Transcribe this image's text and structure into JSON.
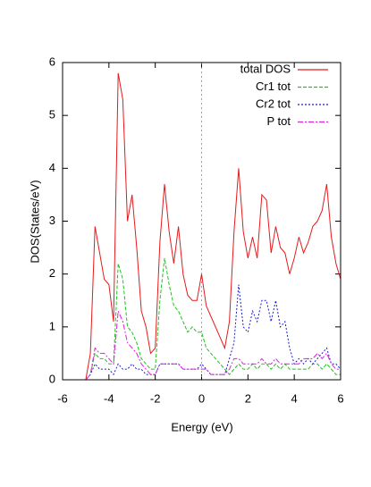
{
  "chart_data": {
    "type": "line",
    "x_label": "Energy (eV)",
    "y_label": "DOS(States/eV)",
    "x": [
      -6,
      -5.8,
      -5.6,
      -5.4,
      -5.2,
      -5,
      -4.8,
      -4.6,
      -4.4,
      -4.2,
      -4,
      -3.8,
      -3.6,
      -3.4,
      -3.2,
      -3,
      -2.8,
      -2.6,
      -2.4,
      -2.2,
      -2,
      -1.8,
      -1.6,
      -1.4,
      -1.2,
      -1,
      -0.8,
      -0.6,
      -0.4,
      -0.2,
      0,
      0.2,
      0.4,
      0.6,
      0.8,
      1,
      1.2,
      1.4,
      1.6,
      1.8,
      2,
      2.2,
      2.4,
      2.6,
      2.8,
      3,
      3.2,
      3.4,
      3.6,
      3.8,
      4,
      4.2,
      4.4,
      4.6,
      4.8,
      5,
      5.2,
      5.4,
      5.6,
      5.8,
      6
    ],
    "series": [
      {
        "name": "total DOS",
        "color": "#e41a1c",
        "dash": "none",
        "values": [
          0,
          0,
          0,
          0,
          0,
          0,
          0.5,
          2.9,
          2.4,
          1.9,
          1.8,
          1.1,
          5.8,
          5.3,
          3.0,
          3.5,
          2.5,
          1.3,
          1.0,
          0.5,
          0.6,
          2.6,
          3.7,
          2.8,
          2.2,
          2.9,
          2.0,
          1.6,
          1.5,
          1.5,
          2.0,
          1.4,
          1.2,
          1.0,
          0.8,
          0.6,
          1.1,
          2.8,
          4.0,
          2.8,
          2.3,
          2.7,
          2.3,
          3.5,
          3.4,
          2.4,
          2.9,
          2.5,
          2.4,
          2.0,
          2.3,
          2.7,
          2.4,
          2.6,
          2.9,
          3.0,
          3.2,
          3.7,
          2.7,
          2.2,
          1.9
        ]
      },
      {
        "name": "Cr1 tot",
        "color": "#22c022",
        "dash": "4,2",
        "values": [
          0,
          0,
          0,
          0,
          0,
          0,
          0.1,
          0.5,
          0.4,
          0.4,
          0.3,
          0.3,
          2.2,
          1.9,
          1.0,
          0.9,
          0.7,
          0.4,
          0.3,
          0.2,
          0.2,
          1.5,
          2.3,
          1.8,
          1.4,
          1.3,
          1.1,
          0.9,
          1.0,
          0.9,
          0.9,
          0.6,
          0.5,
          0.4,
          0.3,
          0.2,
          0.1,
          0.2,
          0.3,
          0.2,
          0.2,
          0.3,
          0.2,
          0.3,
          0.3,
          0.2,
          0.3,
          0.2,
          0.3,
          0.2,
          0.2,
          0.2,
          0.2,
          0.2,
          0.3,
          0.3,
          0.2,
          0.3,
          0.2,
          0.1,
          0.1
        ]
      },
      {
        "name": "Cr2 tot",
        "color": "#1a1ad0",
        "dash": "2,2",
        "values": [
          0,
          0,
          0,
          0,
          0,
          0,
          0.1,
          0.3,
          0.2,
          0.2,
          0.2,
          0.1,
          0.3,
          0.2,
          0.2,
          0.3,
          0.2,
          0.2,
          0.1,
          0.1,
          0.1,
          0.3,
          0.3,
          0.3,
          0.3,
          0.3,
          0.2,
          0.2,
          0.2,
          0.2,
          0.3,
          0.2,
          0.1,
          0.1,
          0.1,
          0.1,
          0.4,
          0.7,
          1.8,
          1.0,
          0.9,
          1.3,
          1.1,
          1.5,
          1.5,
          1.1,
          1.5,
          1.0,
          1.1,
          0.6,
          0.3,
          0.4,
          0.3,
          0.4,
          0.3,
          0.4,
          0.5,
          0.6,
          0.3,
          0.3,
          0.2
        ]
      },
      {
        "name": "P tot",
        "color": "#e020e0",
        "dash": "6,2,2,2",
        "values": [
          0,
          0,
          0,
          0,
          0,
          0,
          0.1,
          0.6,
          0.5,
          0.5,
          0.4,
          0.3,
          1.3,
          1.1,
          0.7,
          0.6,
          0.5,
          0.3,
          0.2,
          0.1,
          0.1,
          0.3,
          0.3,
          0.3,
          0.3,
          0.3,
          0.2,
          0.2,
          0.2,
          0.2,
          0.2,
          0.2,
          0.1,
          0.1,
          0.1,
          0.1,
          0.2,
          0.4,
          0.4,
          0.3,
          0.3,
          0.3,
          0.3,
          0.4,
          0.3,
          0.3,
          0.4,
          0.3,
          0.3,
          0.3,
          0.3,
          0.3,
          0.4,
          0.4,
          0.4,
          0.5,
          0.4,
          0.5,
          0.3,
          0.2,
          0.2
        ]
      }
    ],
    "xlim": [
      -6,
      6
    ],
    "xticks": [
      -6,
      -4,
      -2,
      0,
      2,
      4,
      6
    ],
    "ylim": [
      0,
      6
    ],
    "yticks": [
      0,
      1,
      2,
      3,
      4,
      5,
      6
    ],
    "vlines": [
      0
    ],
    "legend": "top-right"
  }
}
